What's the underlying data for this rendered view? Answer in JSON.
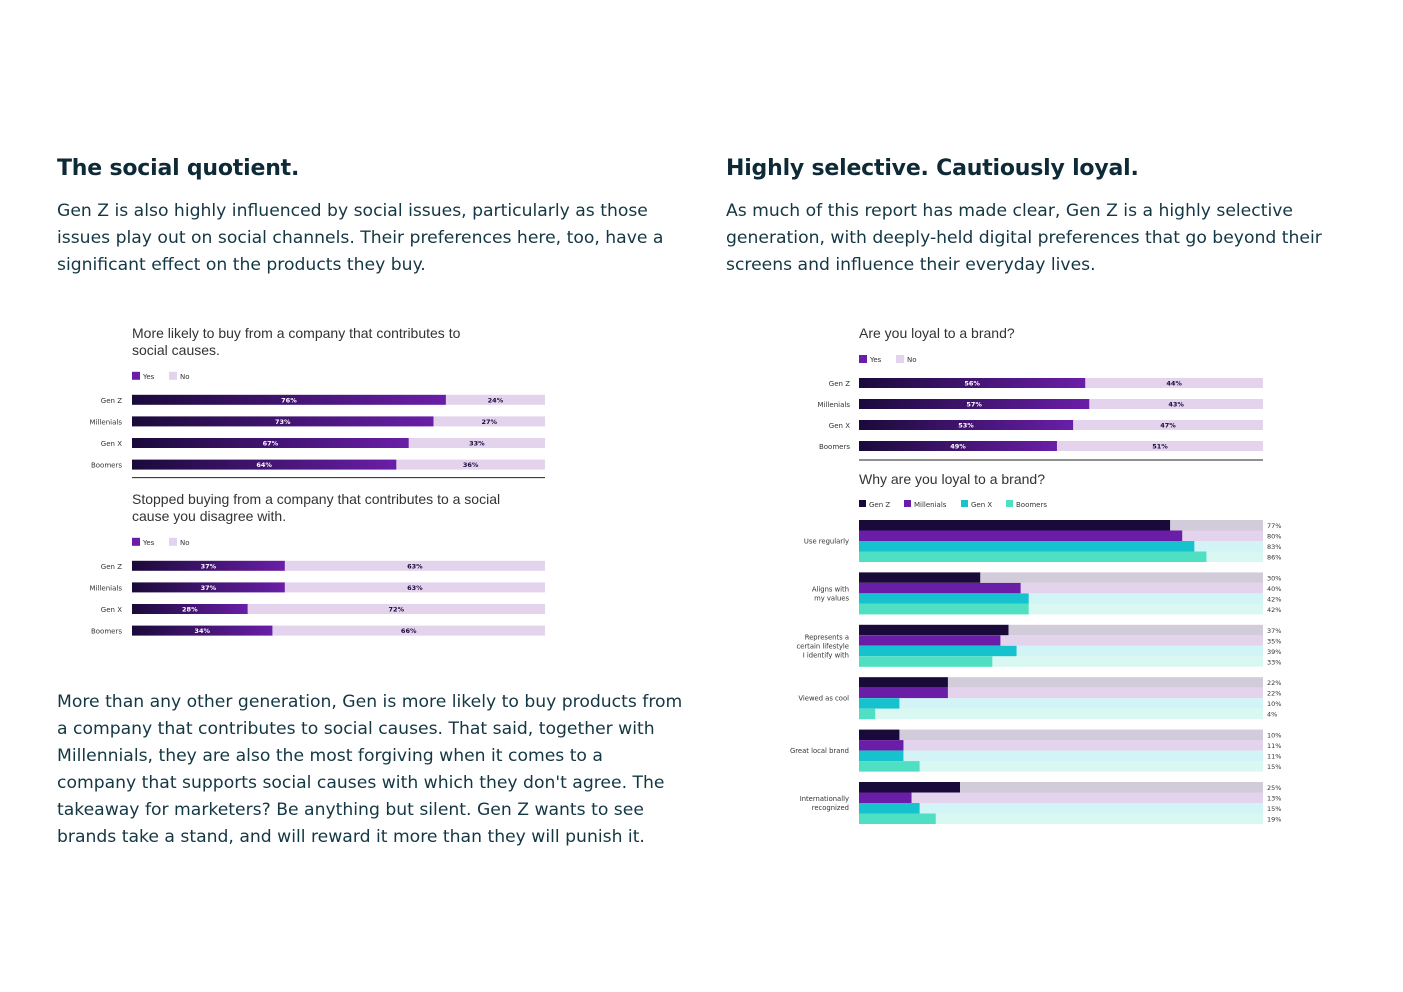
{
  "left": {
    "title": "The social quotient.",
    "intro": "Gen Z is also highly influenced by social issues, particularly as those issues play out on social channels. Their preferences here, too, have a significant effect on the products they buy.",
    "after": "More than any other generation, Gen is more likely to buy products from a company that contributes to social causes. That said, together with Millennials, they are also the most forgiving when it comes to a company that supports social causes with which they don't agree. The takeaway for marketers? Be anything but silent. Gen Z wants to see brands take a stand, and will reward it more than they will punish it."
  },
  "right": {
    "title": "Highly selective. Cautiously loyal.",
    "intro": "As much of this report has made clear, Gen Z is a highly selective generation, with deeply-held digital preferences that go beyond their screens and influence their everyday lives."
  },
  "colors": {
    "yes_dark": "#1a0a3a",
    "yes_light": "#6a1ea8",
    "no": "#e3d3ec",
    "gen_z": "#1a0a3a",
    "millenials": "#6a1ea8",
    "gen_x": "#17c2cf",
    "boomers": "#4fe0c4",
    "track_gen_z": "#d2cbd9",
    "track_millenials": "#e3d3ec",
    "track_gen_x": "#d3f4f6",
    "track_boomers": "#d9f8f1"
  },
  "chart_data": [
    {
      "type": "bar",
      "stacked": true,
      "title": "More likely to buy from a company that contributes to social causes.",
      "legend": [
        "Yes",
        "No"
      ],
      "categories": [
        "Gen Z",
        "Millenials",
        "Gen X",
        "Boomers"
      ],
      "series": [
        {
          "name": "Yes",
          "values": [
            76,
            73,
            67,
            64
          ],
          "labels": [
            "76%",
            "73%",
            "67%",
            "64%"
          ]
        },
        {
          "name": "No",
          "values": [
            24,
            27,
            33,
            36
          ],
          "labels": [
            "24%",
            "27%",
            "33%",
            "36%"
          ]
        }
      ],
      "xlim": [
        0,
        100
      ]
    },
    {
      "type": "bar",
      "stacked": true,
      "title": "Stopped buying from a company that contributes to a social cause you disagree with.",
      "legend": [
        "Yes",
        "No"
      ],
      "categories": [
        "Gen Z",
        "Millenials",
        "Gen X",
        "Boomers"
      ],
      "series": [
        {
          "name": "Yes",
          "values": [
            37,
            37,
            28,
            34
          ],
          "labels": [
            "37%",
            "37%",
            "28%",
            "34%"
          ]
        },
        {
          "name": "No",
          "values": [
            63,
            63,
            72,
            66
          ],
          "labels": [
            "63%",
            "63%",
            "72%",
            "66%"
          ]
        }
      ],
      "xlim": [
        0,
        100
      ]
    },
    {
      "type": "bar",
      "stacked": true,
      "title": "Are you loyal to a brand?",
      "legend": [
        "Yes",
        "No"
      ],
      "categories": [
        "Gen Z",
        "Millenials",
        "Gen X",
        "Boomers"
      ],
      "series": [
        {
          "name": "Yes",
          "values": [
            56,
            57,
            53,
            49
          ],
          "labels": [
            "56%",
            "57%",
            "53%",
            "49%"
          ]
        },
        {
          "name": "No",
          "values": [
            44,
            43,
            47,
            51
          ],
          "labels": [
            "44%",
            "43%",
            "47%",
            "51%"
          ]
        }
      ],
      "xlim": [
        0,
        100
      ]
    },
    {
      "type": "bar",
      "title": "Why are you loyal to a brand?",
      "legend": [
        "Gen Z",
        "Millenials",
        "Gen X",
        "Boomers"
      ],
      "categories": [
        [
          "Use regularly"
        ],
        [
          "Aligns with",
          "my values"
        ],
        [
          "Represents a",
          "certain lifestyle",
          "I identify with"
        ],
        [
          "Viewed as cool"
        ],
        [
          "Great local brand"
        ],
        [
          "Internationally",
          "recognized"
        ]
      ],
      "series": [
        {
          "name": "Gen Z",
          "values": [
            77,
            30,
            37,
            22,
            10,
            25
          ],
          "labels": [
            "77%",
            "30%",
            "37%",
            "22%",
            "10%",
            "25%"
          ]
        },
        {
          "name": "Millenials",
          "values": [
            80,
            40,
            35,
            22,
            11,
            13
          ],
          "labels": [
            "80%",
            "40%",
            "35%",
            "22%",
            "11%",
            "13%"
          ]
        },
        {
          "name": "Gen X",
          "values": [
            83,
            42,
            39,
            10,
            11,
            15
          ],
          "labels": [
            "83%",
            "42%",
            "39%",
            "10%",
            "11%",
            "15%"
          ]
        },
        {
          "name": "Boomers",
          "values": [
            86,
            42,
            33,
            4,
            15,
            19
          ],
          "labels": [
            "86%",
            "42%",
            "33%",
            "4%",
            "15%",
            "19%"
          ]
        }
      ],
      "xlim": [
        0,
        100
      ]
    }
  ]
}
